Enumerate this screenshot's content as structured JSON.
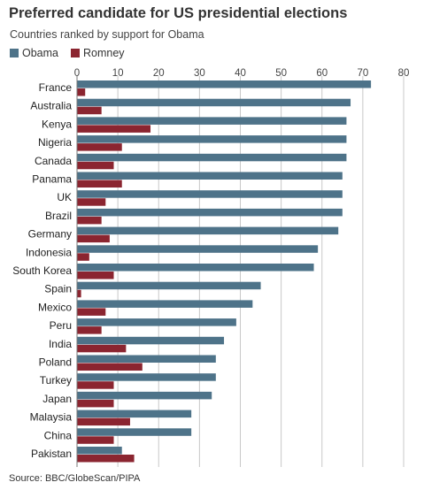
{
  "chart_data": {
    "type": "bar",
    "orientation": "horizontal",
    "title": "Preferred candidate for US presidential elections",
    "subtitle": "Countries ranked by support for Obama",
    "categories": [
      "France",
      "Australia",
      "Kenya",
      "Nigeria",
      "Canada",
      "Panama",
      "UK",
      "Brazil",
      "Germany",
      "Indonesia",
      "South Korea",
      "Spain",
      "Mexico",
      "Peru",
      "India",
      "Poland",
      "Turkey",
      "Japan",
      "Malaysia",
      "China",
      "Pakistan"
    ],
    "series": [
      {
        "name": "Obama",
        "color": "#4e7389",
        "values": [
          72,
          67,
          66,
          66,
          66,
          65,
          65,
          65,
          64,
          59,
          58,
          45,
          43,
          39,
          36,
          34,
          34,
          33,
          28,
          28,
          11
        ]
      },
      {
        "name": "Romney",
        "color": "#8b2530",
        "values": [
          2,
          6,
          18,
          11,
          9,
          11,
          7,
          6,
          8,
          3,
          9,
          1,
          7,
          6,
          12,
          16,
          9,
          9,
          13,
          9,
          14
        ]
      }
    ],
    "xlim": [
      0,
      80
    ],
    "xticks": [
      0,
      10,
      20,
      30,
      40,
      50,
      60,
      70,
      80
    ],
    "grid": true,
    "legend_position": "top-left",
    "source": "Source: BBC/GlobeScan/PIPA"
  }
}
